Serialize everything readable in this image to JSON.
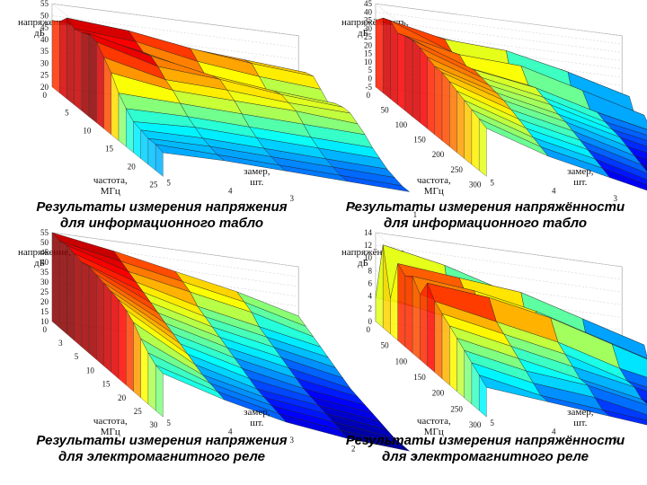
{
  "chart_data": [
    {
      "type": "surface",
      "caption": [
        "Результаты измерения напряжения",
        "для информационного табло"
      ],
      "zlabel": [
        "напряжение,",
        "дБ"
      ],
      "xlabel": [
        "частота,",
        "МГц"
      ],
      "ylabel": [
        "замер,",
        "шт."
      ],
      "zticks": [
        "20",
        "25",
        "30",
        "35",
        "40",
        "45",
        "50",
        "55"
      ],
      "xticks": [
        "0",
        "5",
        "10",
        "15",
        "20",
        "25"
      ],
      "yticks": [
        "5",
        "4",
        "3",
        "2",
        "1"
      ],
      "zlim": [
        20,
        55
      ],
      "grid": true,
      "rows": [
        [
          48,
          50,
          54,
          52,
          53,
          55,
          54,
          50,
          46,
          40,
          36,
          33,
          32,
          31,
          31,
          30
        ],
        [
          46,
          48,
          52,
          50,
          48,
          49,
          47,
          44,
          42,
          39,
          36,
          34,
          32,
          31,
          30,
          30
        ],
        [
          44,
          46,
          48,
          45,
          42,
          44,
          45,
          43,
          41,
          38,
          35,
          33,
          31,
          30,
          29,
          29
        ],
        [
          42,
          44,
          45,
          42,
          39,
          41,
          42,
          41,
          40,
          37,
          34,
          32,
          30,
          29,
          28,
          28
        ],
        [
          40,
          42,
          43,
          40,
          37,
          39,
          40,
          40,
          38,
          36,
          33,
          31,
          29,
          28,
          27,
          27
        ]
      ]
    },
    {
      "type": "surface",
      "caption": [
        "Результаты измерения напряжённости",
        "для информационного табло"
      ],
      "zlabel": [
        "напряжённость,",
        "дБ"
      ],
      "xlabel": [
        "частота,",
        "МГц"
      ],
      "ylabel": [
        "замер,",
        "шт."
      ],
      "zticks": [
        "-5",
        "0",
        "5",
        "10",
        "15",
        "20",
        "25",
        "30",
        "35",
        "40",
        "45"
      ],
      "xticks": [
        "0",
        "50",
        "100",
        "150",
        "200",
        "250",
        "300"
      ],
      "yticks": [
        "5",
        "4",
        "3",
        "2",
        "1"
      ],
      "zlim": [
        -5,
        45
      ],
      "grid": true,
      "rows": [
        [
          35,
          40,
          42,
          38,
          40,
          41,
          40,
          38,
          36,
          36,
          34,
          32,
          30,
          28,
          26,
          24
        ],
        [
          30,
          32,
          28,
          30,
          26,
          28,
          27,
          26,
          25,
          24,
          22,
          20,
          18,
          16,
          14,
          12
        ],
        [
          25,
          30,
          10,
          28,
          20,
          22,
          20,
          19,
          17,
          16,
          14,
          12,
          10,
          8,
          6,
          4
        ],
        [
          20,
          22,
          5,
          18,
          10,
          12,
          10,
          9,
          8,
          6,
          4,
          2,
          0,
          -2,
          -3,
          -4
        ],
        [
          10,
          12,
          0,
          8,
          2,
          4,
          3,
          2,
          0,
          -1,
          -2,
          -3,
          -4,
          -5,
          -5,
          -5
        ]
      ]
    },
    {
      "type": "surface",
      "caption": [
        "Результаты измерения напряжения",
        "для электромагнитного реле"
      ],
      "zlabel": [
        "напряжение,",
        "дБ"
      ],
      "xlabel": [
        "частота,",
        "МГц"
      ],
      "ylabel": [
        "замер,",
        "шт."
      ],
      "zticks": [
        "10",
        "15",
        "20",
        "25",
        "30",
        "35",
        "40",
        "45",
        "50",
        "55"
      ],
      "xticks": [
        "0",
        "3",
        "5",
        "10",
        "15",
        "20",
        "25",
        "30"
      ],
      "yticks": [
        "5",
        "4",
        "3",
        "2",
        "1"
      ],
      "zlim": [
        10,
        55
      ],
      "grid": true,
      "rows": [
        [
          55,
          54,
          55,
          54,
          53,
          54,
          53,
          52,
          51,
          50,
          48,
          45,
          40,
          36,
          33,
          32
        ],
        [
          50,
          48,
          46,
          44,
          42,
          40,
          38,
          36,
          34,
          32,
          30,
          28,
          26,
          25,
          24,
          23
        ],
        [
          44,
          42,
          40,
          36,
          34,
          32,
          30,
          28,
          26,
          24,
          22,
          20,
          19,
          18,
          17,
          16
        ],
        [
          38,
          36,
          34,
          30,
          28,
          26,
          24,
          22,
          20,
          18,
          17,
          16,
          15,
          14,
          13,
          12
        ],
        [
          30,
          28,
          26,
          24,
          22,
          20,
          18,
          16,
          15,
          14,
          13,
          12,
          11,
          10,
          10,
          10
        ]
      ]
    },
    {
      "type": "surface",
      "caption": [
        "Результаты измерения напряжённости",
        "для электромагнитного реле"
      ],
      "zlabel": [
        "напряжённость,",
        "дБ"
      ],
      "xlabel": [
        "частота,",
        "МГц"
      ],
      "ylabel": [
        "замер,",
        "шт."
      ],
      "zticks": [
        "0",
        "2",
        "4",
        "6",
        "8",
        "10",
        "12",
        "14"
      ],
      "xticks": [
        "0",
        "50",
        "100",
        "150",
        "200",
        "250",
        "300"
      ],
      "yticks": [
        "5",
        "4",
        "3",
        "2",
        "1"
      ],
      "zlim": [
        0,
        15
      ],
      "grid": true,
      "rows": [
        [
          4,
          14,
          6,
          13,
          12,
          13,
          11,
          14,
          12,
          11,
          10,
          9,
          8,
          7,
          6,
          5
        ],
        [
          3,
          12,
          4,
          12,
          10,
          12,
          9,
          13,
          10,
          9,
          8,
          7,
          6,
          5,
          4,
          4
        ],
        [
          2,
          9,
          3,
          11,
          6,
          10,
          7,
          11,
          8,
          7,
          6,
          5,
          5,
          4,
          3,
          3
        ],
        [
          1,
          6,
          2,
          8,
          3,
          7,
          4,
          8,
          5,
          4,
          4,
          3,
          3,
          2,
          2,
          2
        ],
        [
          0,
          3,
          1,
          5,
          1,
          4,
          2,
          5,
          3,
          2,
          2,
          1,
          1,
          1,
          0,
          0
        ]
      ]
    }
  ]
}
